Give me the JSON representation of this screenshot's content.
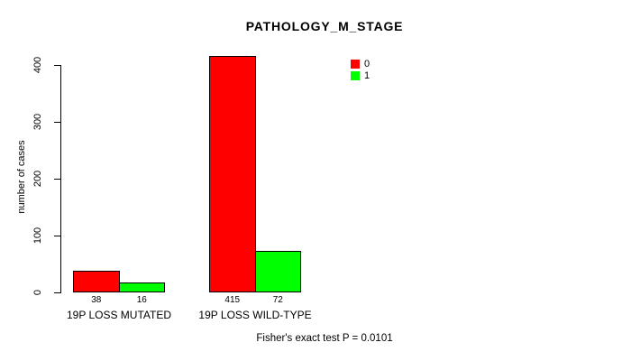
{
  "chart_data": {
    "type": "bar",
    "title": "PATHOLOGY_M_STAGE",
    "xlabel": "",
    "ylabel": "number of cases",
    "ylim": [
      0,
      400
    ],
    "yticks": [
      0,
      100,
      200,
      300,
      400
    ],
    "categories": [
      "19P LOSS MUTATED",
      "19P LOSS WILD-TYPE"
    ],
    "series": [
      {
        "name": "0",
        "color": "#FF0000",
        "values": [
          38,
          415
        ]
      },
      {
        "name": "1",
        "color": "#00FF00",
        "values": [
          16,
          72
        ]
      }
    ],
    "bar_value_labels": [
      [
        "38",
        "16"
      ],
      [
        "415",
        "72"
      ]
    ],
    "grid": false,
    "legend_position": "top-right-inside",
    "annotation": "Fisher's exact test P = 0.0101"
  }
}
